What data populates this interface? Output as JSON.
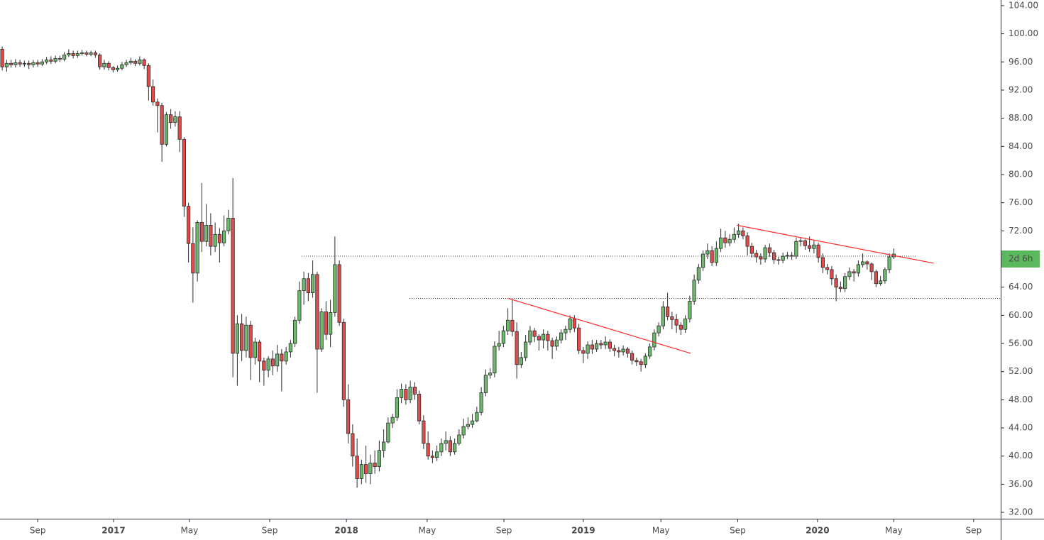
{
  "chart_data": {
    "type": "candlestick",
    "up_color": "#6cba6c",
    "down_color": "#e04b4b",
    "outline_color": "#2b2b2b",
    "line_color": "#ff2a2a",
    "xlim": [
      -0.5,
      225.1
    ],
    "ylim": [
      31.1,
      104.8
    ],
    "xticks": [
      {
        "value": 8,
        "label": "Sep"
      },
      {
        "value": 25.1,
        "label": "2017"
      },
      {
        "value": 42.2,
        "label": "May"
      },
      {
        "value": 60.3,
        "label": "Sep"
      },
      {
        "value": 77.6,
        "label": "2018"
      },
      {
        "value": 95.8,
        "label": "May"
      },
      {
        "value": 113.1,
        "label": "Sep"
      },
      {
        "value": 131,
        "label": "2019"
      },
      {
        "value": 148.5,
        "label": "May"
      },
      {
        "value": 165.8,
        "label": "Sep"
      },
      {
        "value": 183.8,
        "label": "2020"
      },
      {
        "value": 201,
        "label": "May"
      },
      {
        "value": 219,
        "label": "Sep"
      }
    ],
    "yticks": [
      {
        "value": 32,
        "label": "32.00"
      },
      {
        "value": 36,
        "label": "36.00"
      },
      {
        "value": 40,
        "label": "40.00"
      },
      {
        "value": 44,
        "label": "44.00"
      },
      {
        "value": 48,
        "label": "48.00"
      },
      {
        "value": 52,
        "label": "52.00"
      },
      {
        "value": 56,
        "label": "56.00"
      },
      {
        "value": 60,
        "label": "60.00"
      },
      {
        "value": 64,
        "label": "64.00"
      },
      {
        "value": 68,
        "label": "68.00"
      },
      {
        "value": 72,
        "label": "72.00"
      },
      {
        "value": 76,
        "label": "76.00"
      },
      {
        "value": 80,
        "label": "80.00"
      },
      {
        "value": 84,
        "label": "84.00"
      },
      {
        "value": 88,
        "label": "88.00"
      },
      {
        "value": 92,
        "label": "92.00"
      },
      {
        "value": 96,
        "label": "96.00"
      },
      {
        "value": 100,
        "label": "100.00"
      },
      {
        "value": 104,
        "label": "104.00"
      }
    ],
    "price_marker": {
      "value": 68,
      "label": "2d 6h",
      "color": "#5cb85c"
    },
    "trendlines": [
      {
        "x": [
          114.1,
          155.2
        ],
        "y": [
          62.4,
          54.6
        ]
      },
      {
        "x": [
          165.6,
          210
        ],
        "y": [
          72.8,
          67.4
        ]
      }
    ],
    "hlines": [
      {
        "value": 68.4,
        "x": [
          67.5,
          206
        ]
      },
      {
        "value": 62.4,
        "x": [
          91.8,
          225.1
        ]
      }
    ],
    "open": [
      97.8,
      95.3,
      95.8,
      95.6,
      95.9,
      95.7,
      95.8,
      95.6,
      95.9,
      95.7,
      96.0,
      96.3,
      96.1,
      96.5,
      96.4,
      97.0,
      97.2,
      96.9,
      97.2,
      97.3,
      97.1,
      97.3,
      97.0,
      95.3,
      95.8,
      95.2,
      94.9,
      95.1,
      95.6,
      95.9,
      96.1,
      95.8,
      96.3,
      95.5,
      92.5,
      90.3,
      89.8,
      84.3,
      88.5,
      87.4,
      88.2,
      85.0,
      75.5,
      70.2,
      66.0,
      73.2,
      70.5,
      72.8,
      69.8,
      71.5,
      70.3,
      72.0,
      73.8,
      54.6,
      58.8,
      55.0,
      58.6,
      54.0,
      56.2,
      53.5,
      52.2,
      53.8,
      52.8,
      54.5,
      53.5,
      54.8,
      56.0,
      59.3,
      63.5,
      65.2,
      63.2,
      65.8,
      55.2,
      60.5,
      57.3,
      60.4,
      67.2,
      59.0,
      48.0,
      43.2,
      40.0,
      36.8,
      38.8,
      37.5,
      39.0,
      38.5,
      40.8,
      42.0,
      44.7,
      45.5,
      48.3,
      49.5,
      48.0,
      49.8,
      48.8,
      45.0,
      41.8,
      40.0,
      39.8,
      40.6,
      41.8,
      42.2,
      40.6,
      41.8,
      43.0,
      44.2,
      44.5,
      45.0,
      46.2,
      49.0,
      51.5,
      51.8,
      55.6,
      56.0,
      57.8,
      59.3,
      57.7,
      53.0,
      54.0,
      56.2,
      57.8,
      57.0,
      56.5,
      57.3,
      56.4,
      55.6,
      56.5,
      57.5,
      58.0,
      59.5,
      58.2,
      55.0,
      54.6,
      55.8,
      55.2,
      56.0,
      55.8,
      56.2,
      55.3,
      55.0,
      54.8,
      55.2,
      54.6,
      53.6,
      53.4,
      53.0,
      54.2,
      55.5,
      57.5,
      58.5,
      61.2,
      59.8,
      59.4,
      58.6,
      58.0,
      59.5,
      62.0,
      65.0,
      66.8,
      68.7,
      69.2,
      67.5,
      69.5,
      71.0,
      70.3,
      70.8,
      71.5,
      72.0,
      71.3,
      69.8,
      68.8,
      68.3,
      68.0,
      69.6,
      68.9,
      67.9,
      67.8,
      68.4,
      68.5,
      68.4,
      70.5,
      70.6,
      69.9,
      69.5,
      70.0,
      68.2,
      66.8,
      66.5,
      65.2,
      64.0,
      63.8,
      65.5,
      66.2,
      66.0,
      67.2,
      67.6,
      67.3,
      66.2,
      64.5,
      64.9,
      66.5,
      68.3
    ],
    "high": [
      98.2,
      96.3,
      96.3,
      96.4,
      96.3,
      96.2,
      96.2,
      96.3,
      96.3,
      96.4,
      96.7,
      96.8,
      96.9,
      96.9,
      97.4,
      97.8,
      97.6,
      97.6,
      97.7,
      97.6,
      97.6,
      97.6,
      97.2,
      96.3,
      96.1,
      95.4,
      95.5,
      96.0,
      96.3,
      96.6,
      96.4,
      96.8,
      96.5,
      95.8,
      93.5,
      90.8,
      90.2,
      88.9,
      89.3,
      89.0,
      89.0,
      85.3,
      76.0,
      72.5,
      73.5,
      78.8,
      75.8,
      74.5,
      73.2,
      72.4,
      74.2,
      75.0,
      79.5,
      60.0,
      60.2,
      59.8,
      59.2,
      56.8,
      56.5,
      54.0,
      54.2,
      55.0,
      55.8,
      55.2,
      55.5,
      56.5,
      59.8,
      64.8,
      66.2,
      66.0,
      67.8,
      66.2,
      61.0,
      62.0,
      62.2,
      71.2,
      67.8,
      59.5,
      50.2,
      44.5,
      42.5,
      39.5,
      41.5,
      40.2,
      40.8,
      42.2,
      43.8,
      45.5,
      46.0,
      49.5,
      50.3,
      50.2,
      50.7,
      50.5,
      49.3,
      45.8,
      43.5,
      40.8,
      41.5,
      42.5,
      43.5,
      42.8,
      42.5,
      43.8,
      45.3,
      45.5,
      46.0,
      47.0,
      49.8,
      52.3,
      52.5,
      56.3,
      57.8,
      58.5,
      61.0,
      62.3,
      59.0,
      54.8,
      57.2,
      58.5,
      58.2,
      57.3,
      58.0,
      57.8,
      56.8,
      57.0,
      58.0,
      58.5,
      60.0,
      60.0,
      58.8,
      55.5,
      56.3,
      56.5,
      56.5,
      56.5,
      57.0,
      56.6,
      55.8,
      55.5,
      55.7,
      55.5,
      55.0,
      54.0,
      53.8,
      54.6,
      56.0,
      58.0,
      59.0,
      62.0,
      63.2,
      60.5,
      60.2,
      59.0,
      60.0,
      62.8,
      65.8,
      67.3,
      69.2,
      70.2,
      69.8,
      70.5,
      72.3,
      72.0,
      71.5,
      72.5,
      73.0,
      72.5,
      71.8,
      70.3,
      69.3,
      68.8,
      70.0,
      70.2,
      69.3,
      68.3,
      68.9,
      69.0,
      69.0,
      71.0,
      71.0,
      70.8,
      71.2,
      70.6,
      70.3,
      68.8,
      67.3,
      67.0,
      65.8,
      64.8,
      66.0,
      66.8,
      66.6,
      67.8,
      68.8,
      67.8,
      67.5,
      66.5,
      65.6,
      66.8,
      68.8,
      69.5
    ],
    "low": [
      94.8,
      94.6,
      95.2,
      95.2,
      95.3,
      95.3,
      95.0,
      95.2,
      95.3,
      95.4,
      95.7,
      95.7,
      95.8,
      96.0,
      96.1,
      96.7,
      96.5,
      96.6,
      96.9,
      96.8,
      96.8,
      96.6,
      94.9,
      94.9,
      94.8,
      94.5,
      94.6,
      94.8,
      95.3,
      95.6,
      95.4,
      95.5,
      95.0,
      90.5,
      89.8,
      86.0,
      81.8,
      84.0,
      86.5,
      86.8,
      83.2,
      74.0,
      67.5,
      61.8,
      64.8,
      69.0,
      69.8,
      68.5,
      69.0,
      67.5,
      69.8,
      71.5,
      51.2,
      50.0,
      53.5,
      54.0,
      50.8,
      53.0,
      50.5,
      50.0,
      51.2,
      51.5,
      52.0,
      49.2,
      53.0,
      54.0,
      55.5,
      58.8,
      61.5,
      62.0,
      62.5,
      49.0,
      54.8,
      56.5,
      55.5,
      59.8,
      58.5,
      47.0,
      41.8,
      38.5,
      35.5,
      36.0,
      36.2,
      36.0,
      37.5,
      37.8,
      39.8,
      41.8,
      44.0,
      45.0,
      47.5,
      47.3,
      47.5,
      48.0,
      44.5,
      41.0,
      39.5,
      39.0,
      39.3,
      40.0,
      40.8,
      40.0,
      40.2,
      41.5,
      42.5,
      43.8,
      44.0,
      44.8,
      45.8,
      48.5,
      51.0,
      51.2,
      55.0,
      55.5,
      57.2,
      57.0,
      51.0,
      52.5,
      53.5,
      55.8,
      56.2,
      55.0,
      55.3,
      55.0,
      53.8,
      55.0,
      56.0,
      56.5,
      57.5,
      57.6,
      54.5,
      53.2,
      53.8,
      54.5,
      54.8,
      55.2,
      55.2,
      54.8,
      54.2,
      54.0,
      54.3,
      54.0,
      53.0,
      52.8,
      52.0,
      52.5,
      53.8,
      55.0,
      57.0,
      58.0,
      59.3,
      58.0,
      57.5,
      57.2,
      57.5,
      59.0,
      61.5,
      64.5,
      66.3,
      68.0,
      67.0,
      67.0,
      69.0,
      69.6,
      69.8,
      70.3,
      71.0,
      70.8,
      68.5,
      68.2,
      67.5,
      67.2,
      67.5,
      68.3,
      67.3,
      67.2,
      67.4,
      68.0,
      67.9,
      68.0,
      69.8,
      69.3,
      69.0,
      68.8,
      67.5,
      66.0,
      65.8,
      64.3,
      62.0,
      63.3,
      63.3,
      65.0,
      64.8,
      65.5,
      66.8,
      66.5,
      65.0,
      64.0,
      64.2,
      64.5,
      66.0,
      68.0
    ],
    "close": [
      95.3,
      95.8,
      95.6,
      95.9,
      95.7,
      95.8,
      95.6,
      95.9,
      95.7,
      96.0,
      96.3,
      96.1,
      96.5,
      96.4,
      97.0,
      97.2,
      96.9,
      97.2,
      97.3,
      97.1,
      97.3,
      97.0,
      95.3,
      95.8,
      95.2,
      94.9,
      95.1,
      95.6,
      95.9,
      96.1,
      95.8,
      96.3,
      95.5,
      92.5,
      90.3,
      89.8,
      84.3,
      88.5,
      87.4,
      88.2,
      85.0,
      75.5,
      70.2,
      66.0,
      73.2,
      70.5,
      72.8,
      69.8,
      71.5,
      70.3,
      72.0,
      73.8,
      54.6,
      58.8,
      55.0,
      58.6,
      54.0,
      56.2,
      53.5,
      52.2,
      53.8,
      52.8,
      54.5,
      53.5,
      54.8,
      56.0,
      59.3,
      63.5,
      65.2,
      63.2,
      65.8,
      55.2,
      60.5,
      57.3,
      60.4,
      67.2,
      59.0,
      48.0,
      43.2,
      40.0,
      36.8,
      38.8,
      37.5,
      39.0,
      38.5,
      40.8,
      42.0,
      44.7,
      45.5,
      48.3,
      49.5,
      48.0,
      49.8,
      48.8,
      45.0,
      41.8,
      40.0,
      39.8,
      40.6,
      41.8,
      42.2,
      40.6,
      41.8,
      43.0,
      44.2,
      44.5,
      45.0,
      46.2,
      49.0,
      51.5,
      51.8,
      55.6,
      56.0,
      57.8,
      59.3,
      57.7,
      53.0,
      54.0,
      56.2,
      57.8,
      57.0,
      56.5,
      57.3,
      56.4,
      55.6,
      56.5,
      57.5,
      58.0,
      59.5,
      58.2,
      55.0,
      54.6,
      55.8,
      55.2,
      56.0,
      55.8,
      56.2,
      55.3,
      55.0,
      54.8,
      55.2,
      54.6,
      53.6,
      53.4,
      53.0,
      54.2,
      55.5,
      57.5,
      58.5,
      61.2,
      59.8,
      59.4,
      58.6,
      58.0,
      59.5,
      62.0,
      65.0,
      66.8,
      68.7,
      69.2,
      67.5,
      69.5,
      71.0,
      70.3,
      70.8,
      71.5,
      72.0,
      71.3,
      69.8,
      68.8,
      68.3,
      68.0,
      69.6,
      68.9,
      67.9,
      67.8,
      68.4,
      68.5,
      68.4,
      70.5,
      70.6,
      69.9,
      69.5,
      70.0,
      68.2,
      66.8,
      66.5,
      65.2,
      64.0,
      63.8,
      65.5,
      66.2,
      66.0,
      67.2,
      67.6,
      67.3,
      66.2,
      64.5,
      64.9,
      66.5,
      68.3,
      68.7
    ]
  }
}
